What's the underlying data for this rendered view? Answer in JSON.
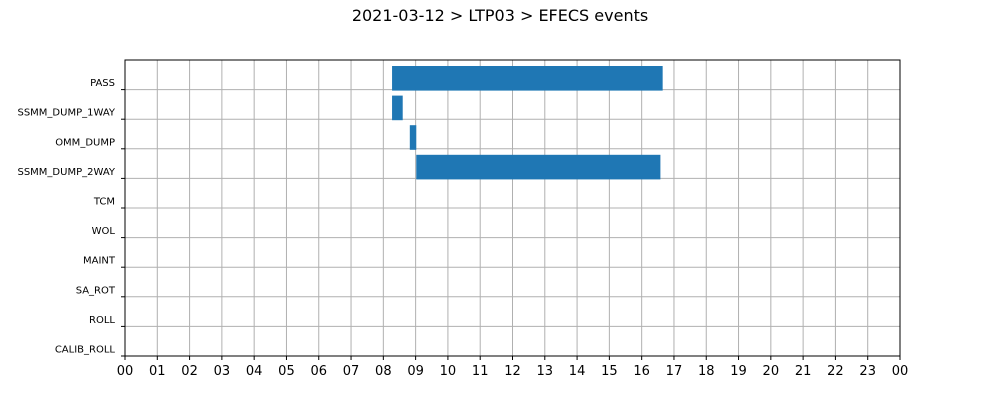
{
  "chart_data": {
    "type": "bar",
    "orientation": "horizontal-timeline",
    "title": "2021-03-12 > LTP03 > EFECS events",
    "xlabel": "",
    "ylabel": "",
    "xlim": [
      0,
      24
    ],
    "x_tick_labels": [
      "00",
      "01",
      "02",
      "03",
      "04",
      "05",
      "06",
      "07",
      "08",
      "09",
      "10",
      "11",
      "12",
      "13",
      "14",
      "15",
      "16",
      "17",
      "18",
      "19",
      "20",
      "21",
      "22",
      "23",
      "00"
    ],
    "categories": [
      "PASS",
      "SSMM_DUMP_1WAY",
      "OMM_DUMP",
      "SSMM_DUMP_2WAY",
      "TCM",
      "WOL",
      "MAINT",
      "SA_ROT",
      "ROLL",
      "CALIB_ROLL"
    ],
    "bars": [
      {
        "category": "PASS",
        "start": 8.27,
        "end": 16.65
      },
      {
        "category": "SSMM_DUMP_1WAY",
        "start": 8.27,
        "end": 8.6
      },
      {
        "category": "OMM_DUMP",
        "start": 8.82,
        "end": 9.02
      },
      {
        "category": "SSMM_DUMP_2WAY",
        "start": 9.02,
        "end": 16.58
      }
    ],
    "bar_color": "#1f77b4",
    "grid": true
  }
}
